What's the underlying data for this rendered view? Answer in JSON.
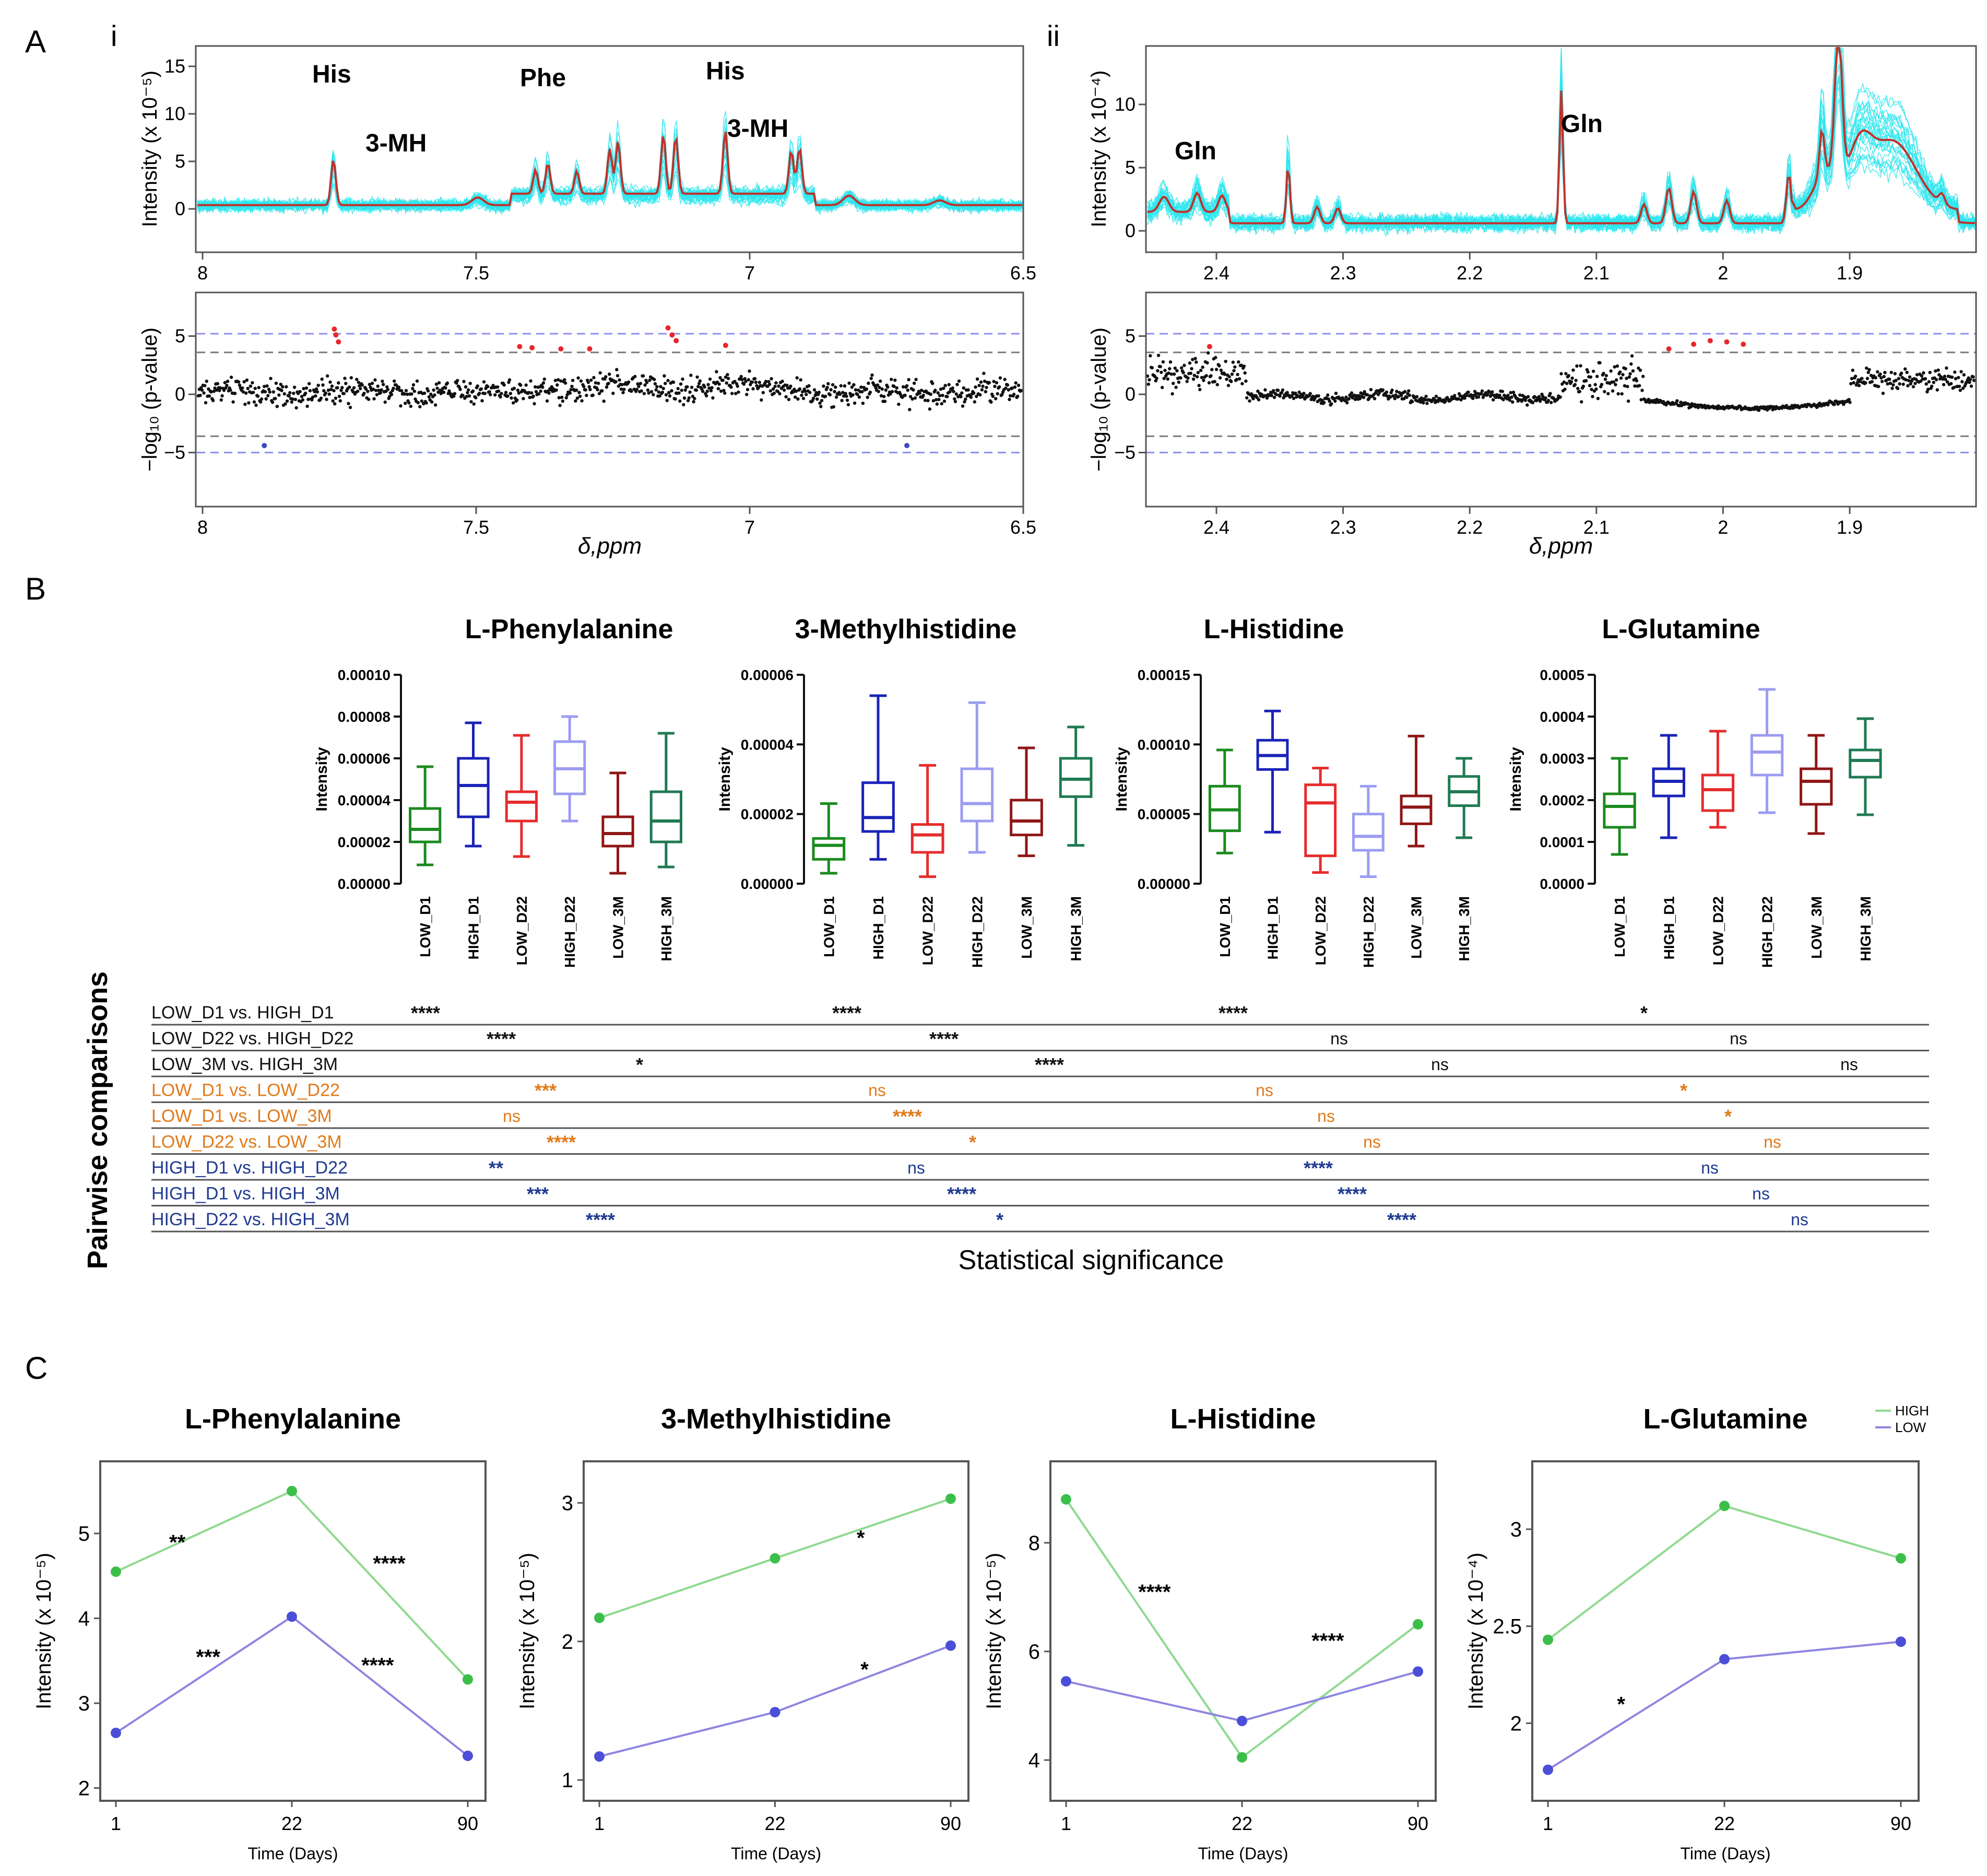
{
  "panel_labels": {
    "A": "A",
    "B": "B",
    "C": "C",
    "i": "i",
    "ii": "ii"
  },
  "colors": {
    "spectra": "#2ee6ee",
    "mean": "#c0312b",
    "sig_point": "#e8262b",
    "blue_point": "#3b47c4",
    "thr_blue": "#8e8ef0",
    "thr_gray": "#7a7a7a",
    "high_line": "#8fd98f",
    "high_point": "#3cbf4a",
    "low_line": "#8e86e0",
    "low_point": "#4b4fd8",
    "orange": "#e07a1a",
    "navy": "#1f3a93",
    "LOW_D1": "#1b8a1f",
    "HIGH_D1": "#1a23b8",
    "LOW_D22": "#e62c2c",
    "HIGH_D22": "#9c9cf2",
    "LOW_3M": "#8f1616",
    "HIGH_3M": "#1f7a52"
  },
  "panelA": {
    "i": {
      "ylabel_spec": "Intensity (x 10⁻⁵)",
      "ylabel_p": "−log₁₀ (p-value)",
      "xlabel": "δ,ppm",
      "x_ticks": [
        "8",
        "7.5",
        "7",
        "6.5"
      ],
      "y_ticks_spec": [
        "15",
        "10",
        "5",
        "0"
      ],
      "y_ticks_p": [
        "5",
        "0",
        "−5"
      ],
      "peak_labels": [
        "His",
        "3-MH",
        "Phe",
        "His",
        "3-MH"
      ]
    },
    "ii": {
      "ylabel_spec": "Intensity (x 10⁻⁴)",
      "ylabel_p": "−log₁₀ (p-value)",
      "xlabel": "δ,ppm",
      "x_ticks": [
        "2.4",
        "2.3",
        "2.2",
        "2.1",
        "2",
        "1.9"
      ],
      "y_ticks_spec": [
        "10",
        "5",
        "0"
      ],
      "y_ticks_p": [
        "5",
        "0",
        "−5"
      ],
      "peak_labels": [
        "Gln",
        "Gln"
      ]
    }
  },
  "panelB": {
    "group_labels": [
      "LOW_D1",
      "HIGH_D1",
      "LOW_D22",
      "HIGH_D22",
      "LOW_3M",
      "HIGH_3M"
    ],
    "ylabel": "Intensity",
    "charts": [
      {
        "title": "L-Phenylalanine",
        "y_ticks": [
          "0.00010",
          "0.00008",
          "0.00006",
          "0.00004",
          "0.00002",
          "0.00000"
        ],
        "ymax": 0.0001,
        "boxes": [
          [
            9e-06,
            2e-05,
            2.6e-05,
            3.6e-05,
            5.6e-05
          ],
          [
            1.8e-05,
            3.2e-05,
            4.7e-05,
            6e-05,
            7.7e-05
          ],
          [
            1.3e-05,
            3e-05,
            3.9e-05,
            4.4e-05,
            7.1e-05
          ],
          [
            3e-05,
            4.3e-05,
            5.5e-05,
            6.8e-05,
            8e-05
          ],
          [
            5e-06,
            1.8e-05,
            2.4e-05,
            3.2e-05,
            5.3e-05
          ],
          [
            8e-06,
            2e-05,
            3e-05,
            4.4e-05,
            7.2e-05
          ]
        ]
      },
      {
        "title": "3-Methylhistidine",
        "y_ticks": [
          "0.00006",
          "0.00004",
          "0.00002",
          "0.00000"
        ],
        "ymax": 6e-05,
        "boxes": [
          [
            3e-06,
            7e-06,
            1.1e-05,
            1.3e-05,
            2.3e-05
          ],
          [
            7e-06,
            1.5e-05,
            1.9e-05,
            2.9e-05,
            5.4e-05
          ],
          [
            2e-06,
            9e-06,
            1.4e-05,
            1.7e-05,
            3.4e-05
          ],
          [
            9e-06,
            1.8e-05,
            2.3e-05,
            3.3e-05,
            5.2e-05
          ],
          [
            8e-06,
            1.4e-05,
            1.8e-05,
            2.4e-05,
            3.9e-05
          ],
          [
            1.1e-05,
            2.5e-05,
            3e-05,
            3.6e-05,
            4.5e-05
          ]
        ]
      },
      {
        "title": "L-Histidine",
        "y_ticks": [
          "0.00015",
          "0.00010",
          "0.00005",
          "0.00000"
        ],
        "ymax": 0.00015,
        "boxes": [
          [
            2.2e-05,
            3.8e-05,
            5.3e-05,
            7e-05,
            9.6e-05
          ],
          [
            3.7e-05,
            8.2e-05,
            9.2e-05,
            0.000103,
            0.000124
          ],
          [
            8e-06,
            2e-05,
            5.8e-05,
            7.1e-05,
            8.3e-05
          ],
          [
            5e-06,
            2.4e-05,
            3.4e-05,
            5e-05,
            7e-05
          ],
          [
            2.7e-05,
            4.3e-05,
            5.5e-05,
            6.3e-05,
            0.000106
          ],
          [
            3.3e-05,
            5.6e-05,
            6.6e-05,
            7.7e-05,
            9e-05
          ]
        ]
      },
      {
        "title": "L-Glutamine",
        "y_ticks": [
          "0.0005",
          "0.0004",
          "0.0003",
          "0.0002",
          "0.0001",
          "0.0000"
        ],
        "ymax": 0.0005,
        "boxes": [
          [
            7e-05,
            0.000135,
            0.000185,
            0.000215,
            0.0003
          ],
          [
            0.00011,
            0.00021,
            0.000245,
            0.000275,
            0.000355
          ],
          [
            0.000135,
            0.000175,
            0.000225,
            0.00026,
            0.000365
          ],
          [
            0.00017,
            0.00026,
            0.000315,
            0.000355,
            0.000465
          ],
          [
            0.00012,
            0.00019,
            0.000245,
            0.000275,
            0.000355
          ],
          [
            0.000165,
            0.000255,
            0.000295,
            0.00032,
            0.000395
          ]
        ]
      }
    ],
    "comparisons_title": "Pairwise comparisons",
    "significance_label": "Statistical significance",
    "rows": [
      {
        "label": "LOW_D1 vs. HIGH_D1",
        "group": "black",
        "sig": [
          "****",
          "****",
          "****",
          "*"
        ]
      },
      {
        "label": "LOW_D22 vs. HIGH_D22",
        "group": "black",
        "sig": [
          "****",
          "****",
          "ns",
          "ns"
        ]
      },
      {
        "label": "LOW_3M vs. HIGH_3M",
        "group": "black",
        "sig": [
          "*",
          "****",
          "ns",
          "ns"
        ]
      },
      {
        "label": "LOW_D1 vs. LOW_D22",
        "group": "orange",
        "sig": [
          "***",
          "ns",
          "ns",
          "*"
        ]
      },
      {
        "label": "LOW_D1 vs. LOW_3M",
        "group": "orange",
        "sig": [
          "ns",
          "****",
          "ns",
          "*"
        ]
      },
      {
        "label": "LOW_D22 vs. LOW_3M",
        "group": "orange",
        "sig": [
          "****",
          "*",
          "ns",
          "ns"
        ]
      },
      {
        "label": "HIGH_D1 vs. HIGH_D22",
        "group": "navy",
        "sig": [
          "**",
          "ns",
          "****",
          "ns"
        ]
      },
      {
        "label": "HIGH_D1 vs. HIGH_3M",
        "group": "navy",
        "sig": [
          "***",
          "****",
          "****",
          "ns"
        ]
      },
      {
        "label": "HIGH_D22 vs. HIGH_3M",
        "group": "navy",
        "sig": [
          "****",
          "*",
          "****",
          "ns"
        ]
      }
    ]
  },
  "chart_data": [
    {
      "type": "line",
      "title": "L-Phenylalanine",
      "xlabel": "Time (Days)",
      "ylabel": "Intensity (x 10⁻⁵)",
      "x": [
        1,
        22,
        90
      ],
      "x_ticks": [
        "1",
        "22",
        "90"
      ],
      "y_ticks": [
        "5",
        "4",
        "3",
        "2"
      ],
      "ylim": [
        1.85,
        5.85
      ],
      "series": [
        {
          "name": "HIGH",
          "values": [
            4.55,
            5.5,
            3.28
          ]
        },
        {
          "name": "LOW",
          "values": [
            2.65,
            4.02,
            2.38
          ]
        }
      ],
      "annotations": [
        {
          "text": "**",
          "x": 0.2,
          "y": 4.9
        },
        {
          "text": "****",
          "x": 0.75,
          "y": 4.65
        },
        {
          "text": "***",
          "x": 0.28,
          "y": 3.55
        },
        {
          "text": "****",
          "x": 0.72,
          "y": 3.45
        }
      ]
    },
    {
      "type": "line",
      "title": "3-Methylhistidine",
      "xlabel": "Time (Days)",
      "ylabel": "Intensity (x 10⁻⁵)",
      "x": [
        1,
        22,
        90
      ],
      "x_ticks": [
        "1",
        "22",
        "90"
      ],
      "y_ticks": [
        "3",
        "2",
        "1"
      ],
      "ylim": [
        0.85,
        3.3
      ],
      "series": [
        {
          "name": "HIGH",
          "values": [
            2.17,
            2.6,
            3.03
          ]
        },
        {
          "name": "LOW",
          "values": [
            1.17,
            1.49,
            1.97
          ]
        }
      ],
      "annotations": [
        {
          "text": "*",
          "x": 0.72,
          "y": 2.75
        },
        {
          "text": "*",
          "x": 0.73,
          "y": 1.8
        }
      ]
    },
    {
      "type": "line",
      "title": "L-Histidine",
      "xlabel": "Time (Days)",
      "ylabel": "Intensity (x 10⁻⁵)",
      "x": [
        1,
        22,
        90
      ],
      "x_ticks": [
        "1",
        "22",
        "90"
      ],
      "y_ticks": [
        "8",
        "6",
        "4"
      ],
      "ylim": [
        3.25,
        9.5
      ],
      "series": [
        {
          "name": "HIGH",
          "values": [
            8.8,
            4.05,
            6.5
          ]
        },
        {
          "name": "LOW",
          "values": [
            5.45,
            4.72,
            5.63
          ]
        }
      ],
      "annotations": [
        {
          "text": "****",
          "x": 0.27,
          "y": 7.1
        },
        {
          "text": "****",
          "x": 0.72,
          "y": 6.2
        }
      ]
    },
    {
      "type": "line",
      "title": "L-Glutamine",
      "xlabel": "Time (Days)",
      "ylabel": "Intensity (x 10⁻⁴)",
      "x": [
        1,
        22,
        90
      ],
      "x_ticks": [
        "1",
        "22",
        "90"
      ],
      "y_ticks": [
        "3",
        "2.5",
        "2"
      ],
      "ylim": [
        1.6,
        3.35
      ],
      "series": [
        {
          "name": "HIGH",
          "values": [
            2.43,
            3.12,
            2.85
          ]
        },
        {
          "name": "LOW",
          "values": [
            1.76,
            2.33,
            2.42
          ]
        }
      ],
      "annotations": [
        {
          "text": "*",
          "x": 0.23,
          "y": 2.1
        }
      ],
      "legend": [
        "HIGH",
        "LOW"
      ],
      "legend_position": "top-right"
    }
  ]
}
